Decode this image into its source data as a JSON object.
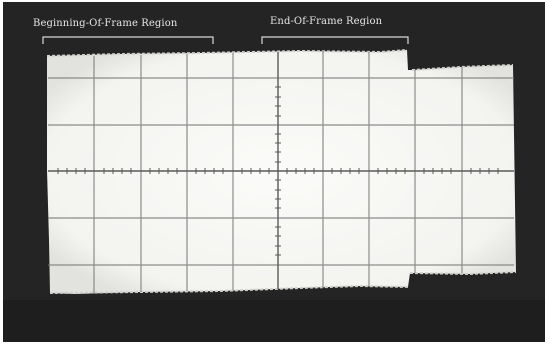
{
  "labels": {
    "beginning_region": "Beginning-Of-Frame Region",
    "end_region": "End-Of-Frame Region"
  },
  "colors": {
    "background": "#242424",
    "trace": "#f7f7f5",
    "graticule": "#6e6e6e",
    "label_text": "#e6e6e6"
  },
  "graticule": {
    "major_divisions_x": 10,
    "major_divisions_y": 5
  }
}
